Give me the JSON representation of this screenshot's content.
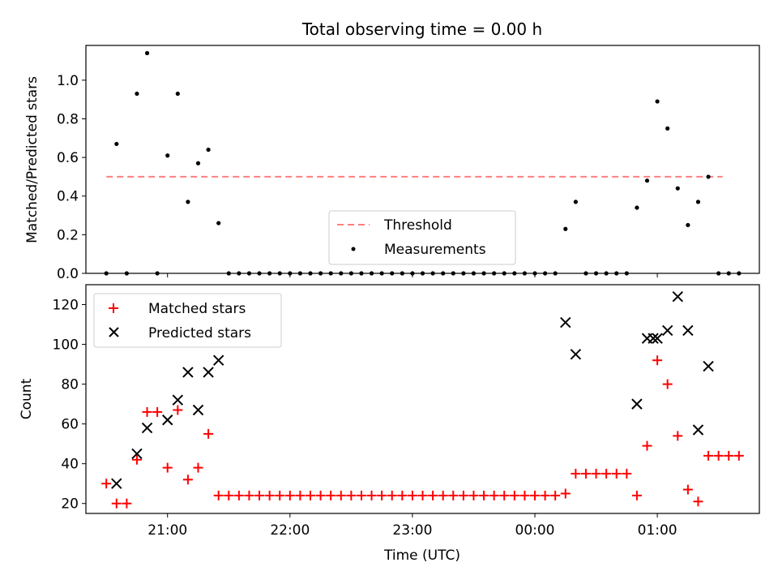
{
  "chart_data": [
    {
      "type": "scatter",
      "title": "Total observing time = 0.00 h",
      "xlabel": "",
      "ylabel": "Matched/Predicted stars",
      "ylim": [
        0,
        1.18
      ],
      "yticks": [
        0.0,
        0.2,
        0.4,
        0.6,
        0.8,
        1.0
      ],
      "ytick_labels": [
        "0.0",
        "0.2",
        "0.4",
        "0.6",
        "0.8",
        "1.0"
      ],
      "legend_placement": "lower-center",
      "threshold": {
        "name": "Threshold",
        "y": 0.5,
        "x_start": "20:30",
        "x_end": "01:32",
        "color": "#ff7f7f"
      },
      "series": [
        {
          "name": "Measurements",
          "color": "#000000",
          "points": [
            [
              "20:30",
              0.0
            ],
            [
              "20:35",
              0.67
            ],
            [
              "20:40",
              0.0
            ],
            [
              "20:45",
              0.93
            ],
            [
              "20:50",
              1.14
            ],
            [
              "20:55",
              0.0
            ],
            [
              "21:00",
              0.61
            ],
            [
              "21:05",
              0.93
            ],
            [
              "21:10",
              0.37
            ],
            [
              "21:15",
              0.57
            ],
            [
              "21:20",
              0.64
            ],
            [
              "21:25",
              0.26
            ],
            [
              "21:30",
              0.0
            ],
            [
              "21:35",
              0.0
            ],
            [
              "21:40",
              0.0
            ],
            [
              "21:45",
              0.0
            ],
            [
              "21:50",
              0.0
            ],
            [
              "21:55",
              0.0
            ],
            [
              "22:00",
              0.0
            ],
            [
              "22:05",
              0.0
            ],
            [
              "22:10",
              0.0
            ],
            [
              "22:15",
              0.0
            ],
            [
              "22:20",
              0.0
            ],
            [
              "22:25",
              0.0
            ],
            [
              "22:30",
              0.0
            ],
            [
              "22:35",
              0.0
            ],
            [
              "22:40",
              0.0
            ],
            [
              "22:45",
              0.0
            ],
            [
              "22:50",
              0.0
            ],
            [
              "22:55",
              0.0
            ],
            [
              "23:00",
              0.0
            ],
            [
              "23:05",
              0.0
            ],
            [
              "23:10",
              0.0
            ],
            [
              "23:15",
              0.0
            ],
            [
              "23:20",
              0.0
            ],
            [
              "23:25",
              0.0
            ],
            [
              "23:30",
              0.0
            ],
            [
              "23:35",
              0.0
            ],
            [
              "23:40",
              0.0
            ],
            [
              "23:45",
              0.0
            ],
            [
              "23:50",
              0.0
            ],
            [
              "23:55",
              0.0
            ],
            [
              "00:00",
              0.0
            ],
            [
              "00:05",
              0.0
            ],
            [
              "00:10",
              0.0
            ],
            [
              "00:15",
              0.23
            ],
            [
              "00:20",
              0.37
            ],
            [
              "00:25",
              0.0
            ],
            [
              "00:30",
              0.0
            ],
            [
              "00:35",
              0.0
            ],
            [
              "00:40",
              0.0
            ],
            [
              "00:45",
              0.0
            ],
            [
              "00:50",
              0.34
            ],
            [
              "00:55",
              0.48
            ],
            [
              "01:00",
              0.89
            ],
            [
              "01:05",
              0.75
            ],
            [
              "01:10",
              0.44
            ],
            [
              "01:15",
              0.25
            ],
            [
              "01:20",
              0.37
            ],
            [
              "01:25",
              0.5
            ],
            [
              "01:30",
              0.0
            ],
            [
              "01:35",
              0.0
            ],
            [
              "01:40",
              0.0
            ]
          ]
        }
      ]
    },
    {
      "type": "scatter",
      "title": "",
      "xlabel": "Time (UTC)",
      "ylabel": "Count",
      "ylim": [
        15,
        130
      ],
      "yticks": [
        20,
        40,
        60,
        80,
        100,
        120
      ],
      "ytick_labels": [
        "20",
        "40",
        "60",
        "80",
        "100",
        "120"
      ],
      "xticks": [
        "21:00",
        "22:00",
        "23:00",
        "00:00",
        "01:00"
      ],
      "xtick_labels": [
        "21:00",
        "22:00",
        "23:00",
        "00:00",
        "01:00"
      ],
      "legend_placement": "upper-left",
      "series": [
        {
          "name": "Matched stars",
          "marker": "plus",
          "color": "#ff0000",
          "points": [
            [
              "20:30",
              30
            ],
            [
              "20:35",
              20
            ],
            [
              "20:40",
              20
            ],
            [
              "20:45",
              42
            ],
            [
              "20:50",
              66
            ],
            [
              "20:55",
              66
            ],
            [
              "21:00",
              38
            ],
            [
              "21:05",
              67
            ],
            [
              "21:10",
              32
            ],
            [
              "21:15",
              38
            ],
            [
              "21:20",
              55
            ],
            [
              "21:25",
              24
            ],
            [
              "21:30",
              24
            ],
            [
              "21:35",
              24
            ],
            [
              "21:40",
              24
            ],
            [
              "21:45",
              24
            ],
            [
              "21:50",
              24
            ],
            [
              "21:55",
              24
            ],
            [
              "22:00",
              24
            ],
            [
              "22:05",
              24
            ],
            [
              "22:10",
              24
            ],
            [
              "22:15",
              24
            ],
            [
              "22:20",
              24
            ],
            [
              "22:25",
              24
            ],
            [
              "22:30",
              24
            ],
            [
              "22:35",
              24
            ],
            [
              "22:40",
              24
            ],
            [
              "22:45",
              24
            ],
            [
              "22:50",
              24
            ],
            [
              "22:55",
              24
            ],
            [
              "23:00",
              24
            ],
            [
              "23:05",
              24
            ],
            [
              "23:10",
              24
            ],
            [
              "23:15",
              24
            ],
            [
              "23:20",
              24
            ],
            [
              "23:25",
              24
            ],
            [
              "23:30",
              24
            ],
            [
              "23:35",
              24
            ],
            [
              "23:40",
              24
            ],
            [
              "23:45",
              24
            ],
            [
              "23:50",
              24
            ],
            [
              "23:55",
              24
            ],
            [
              "00:00",
              24
            ],
            [
              "00:05",
              24
            ],
            [
              "00:10",
              24
            ],
            [
              "00:15",
              25
            ],
            [
              "00:20",
              35
            ],
            [
              "00:25",
              35
            ],
            [
              "00:30",
              35
            ],
            [
              "00:35",
              35
            ],
            [
              "00:40",
              35
            ],
            [
              "00:45",
              35
            ],
            [
              "00:50",
              24
            ],
            [
              "00:55",
              49
            ],
            [
              "01:00",
              92
            ],
            [
              "01:05",
              80
            ],
            [
              "01:10",
              54
            ],
            [
              "01:15",
              27
            ],
            [
              "01:20",
              21
            ],
            [
              "01:25",
              44
            ],
            [
              "01:30",
              44
            ],
            [
              "01:35",
              44
            ],
            [
              "01:40",
              44
            ]
          ]
        },
        {
          "name": "Predicted stars",
          "marker": "x",
          "color": "#000000",
          "points": [
            [
              "20:35",
              30
            ],
            [
              "20:45",
              45
            ],
            [
              "20:50",
              58
            ],
            [
              "21:00",
              62
            ],
            [
              "21:05",
              72
            ],
            [
              "21:10",
              86
            ],
            [
              "21:15",
              67
            ],
            [
              "21:20",
              86
            ],
            [
              "21:25",
              92
            ],
            [
              "00:15",
              111
            ],
            [
              "00:20",
              95
            ],
            [
              "00:50",
              70
            ],
            [
              "00:55",
              103
            ],
            [
              "00:58",
              103
            ],
            [
              "01:00",
              103
            ],
            [
              "01:05",
              107
            ],
            [
              "01:10",
              124
            ],
            [
              "01:15",
              107
            ],
            [
              "01:20",
              57
            ],
            [
              "01:25",
              89
            ]
          ]
        }
      ]
    }
  ]
}
